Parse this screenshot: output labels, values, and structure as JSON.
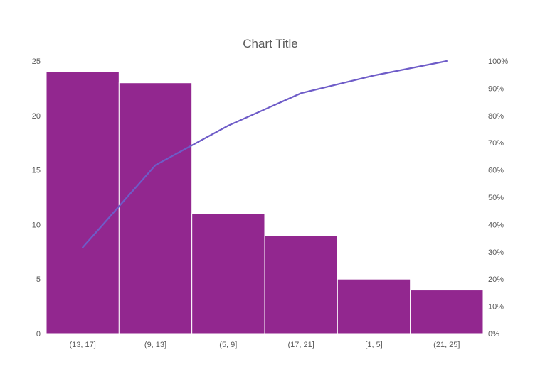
{
  "chart_data": {
    "type": "bar",
    "title": "Chart Title",
    "categories": [
      "(13, 17]",
      "(9, 13]",
      "(5, 9]",
      "(17, 21]",
      "[1, 5]",
      "(21, 25]"
    ],
    "series": [
      {
        "type": "bar",
        "values": [
          24,
          23,
          11,
          9,
          5,
          4
        ]
      },
      {
        "type": "line",
        "axis": "secondary",
        "values": [
          31.6,
          61.8,
          76.3,
          88.2,
          94.7,
          100
        ]
      }
    ],
    "y_ticks": [
      "0",
      "5",
      "10",
      "15",
      "20",
      "25"
    ],
    "y2_ticks": [
      "0%",
      "10%",
      "20%",
      "30%",
      "40%",
      "50%",
      "60%",
      "70%",
      "80%",
      "90%",
      "100%"
    ],
    "ylim": [
      0,
      25
    ],
    "y2lim": [
      0,
      100
    ],
    "grid": false,
    "colors": {
      "bar": "#92278F",
      "line": "#6E5CC8",
      "text": "#595959"
    }
  }
}
